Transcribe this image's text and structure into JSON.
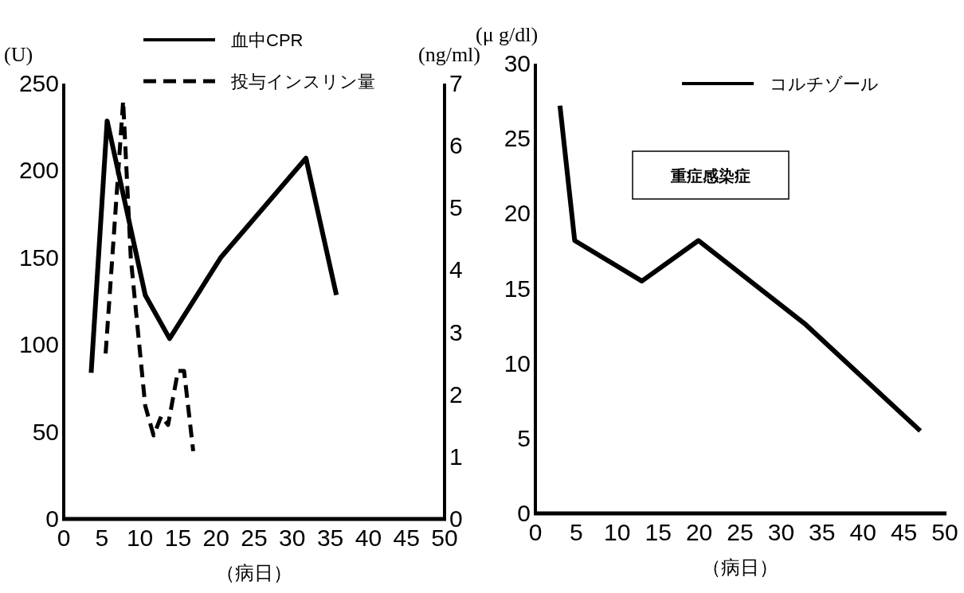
{
  "chart_data": [
    {
      "type": "line",
      "xlabel": "（病日）",
      "ylabel": "(U)",
      "y2label": "(ng/ml)",
      "xlim": [
        0,
        50
      ],
      "xticks": [
        0,
        5,
        10,
        15,
        20,
        25,
        30,
        35,
        40,
        45,
        50
      ],
      "ylim": [
        0,
        250
      ],
      "yticks": [
        0,
        50,
        100,
        150,
        200,
        250
      ],
      "y2lim": [
        0,
        7
      ],
      "y2ticks": [
        0,
        1,
        2,
        3,
        4,
        5,
        6,
        7
      ],
      "legend": "top",
      "grid": false,
      "marker": "none",
      "series": [
        {
          "name": "血中CPR",
          "color": "#000000",
          "axis": "y2",
          "line_style": "solid",
          "x": [
            3.6,
            5.7,
            10.7,
            13.9,
            20.6,
            31.8,
            35.8
          ],
          "values": [
            2.35,
            6.4,
            3.6,
            2.9,
            4.2,
            5.8,
            3.6
          ]
        },
        {
          "name": "投与インスリン量",
          "color": "#000000",
          "axis": "y",
          "line_style": "dashed",
          "x": [
            5.5,
            7.8,
            8.8,
            10.7,
            11.8,
            12.8,
            13.7,
            15.0,
            15.8,
            17.0
          ],
          "values": [
            95,
            240,
            150,
            65,
            48,
            59,
            54,
            85,
            85,
            39
          ]
        }
      ]
    },
    {
      "type": "line",
      "xlabel": "（病日）",
      "ylabel": "(μ g/dl)",
      "xlim": [
        0,
        50
      ],
      "xticks": [
        0,
        5,
        10,
        15,
        20,
        25,
        30,
        35,
        40,
        45,
        50
      ],
      "ylim": [
        0,
        30
      ],
      "yticks": [
        0,
        5,
        10,
        15,
        20,
        25,
        30
      ],
      "legend": "top right",
      "grid": false,
      "marker": "none",
      "annotations": [
        "重症感染症"
      ],
      "series": [
        {
          "name": "コルチゾール",
          "color": "#000000",
          "line_style": "solid",
          "x": [
            3.0,
            4.8,
            13.0,
            19.9,
            33.0,
            47.0
          ],
          "values": [
            27.2,
            18.2,
            15.5,
            18.2,
            12.6,
            5.5
          ]
        }
      ]
    }
  ]
}
